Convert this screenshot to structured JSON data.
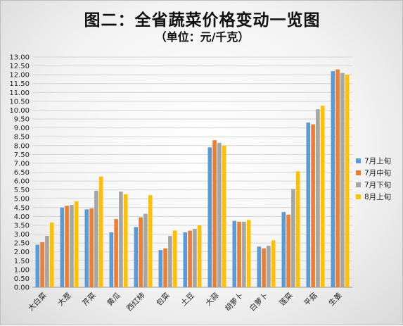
{
  "chart_data": {
    "type": "bar",
    "title": "图二：全省蔬菜价格变动一览图",
    "subtitle": "（单位：元/千克）",
    "xlabel": "",
    "ylabel": "",
    "ylim": [
      0,
      13
    ],
    "ytick_step": 0.5,
    "ytick_labels": [
      "0.00",
      "0.50",
      "1.00",
      "1.50",
      "2.00",
      "2.50",
      "3.00",
      "3.50",
      "4.00",
      "4.50",
      "5.00",
      "5.50",
      "6.00",
      "6.50",
      "7.00",
      "7.50",
      "8.00",
      "8.50",
      "9.00",
      "9.50",
      "10.00",
      "10.50",
      "11.00",
      "11.50",
      "12.00",
      "12.50",
      "13.00"
    ],
    "grid": true,
    "legend_position": "right",
    "categories": [
      "大白菜",
      "大葱",
      "芹菜",
      "黄瓜",
      "西红柿",
      "包菜",
      "土豆",
      "大蒜",
      "胡萝卜",
      "白萝卜",
      "莲菜",
      "平菇",
      "生姜"
    ],
    "series": [
      {
        "name": "7月上旬",
        "color": "#5b9bd5",
        "values": [
          2.4,
          4.5,
          4.4,
          3.1,
          3.4,
          2.1,
          3.1,
          7.9,
          3.75,
          2.3,
          4.25,
          9.3,
          12.2
        ]
      },
      {
        "name": "7月中旬",
        "color": "#ed7d31",
        "values": [
          2.55,
          4.6,
          4.45,
          3.85,
          3.95,
          2.2,
          3.2,
          8.3,
          3.7,
          2.2,
          4.1,
          9.2,
          12.3
        ]
      },
      {
        "name": "7月下旬",
        "color": "#a5a5a5",
        "values": [
          2.9,
          4.65,
          5.45,
          5.4,
          4.15,
          2.9,
          3.3,
          8.15,
          3.7,
          2.35,
          5.55,
          10.05,
          12.1
        ]
      },
      {
        "name": "8月上旬",
        "color": "#ffc000",
        "values": [
          3.65,
          4.85,
          6.25,
          5.25,
          5.2,
          3.2,
          3.5,
          8.0,
          3.8,
          2.65,
          6.55,
          10.25,
          12.0
        ]
      }
    ]
  }
}
